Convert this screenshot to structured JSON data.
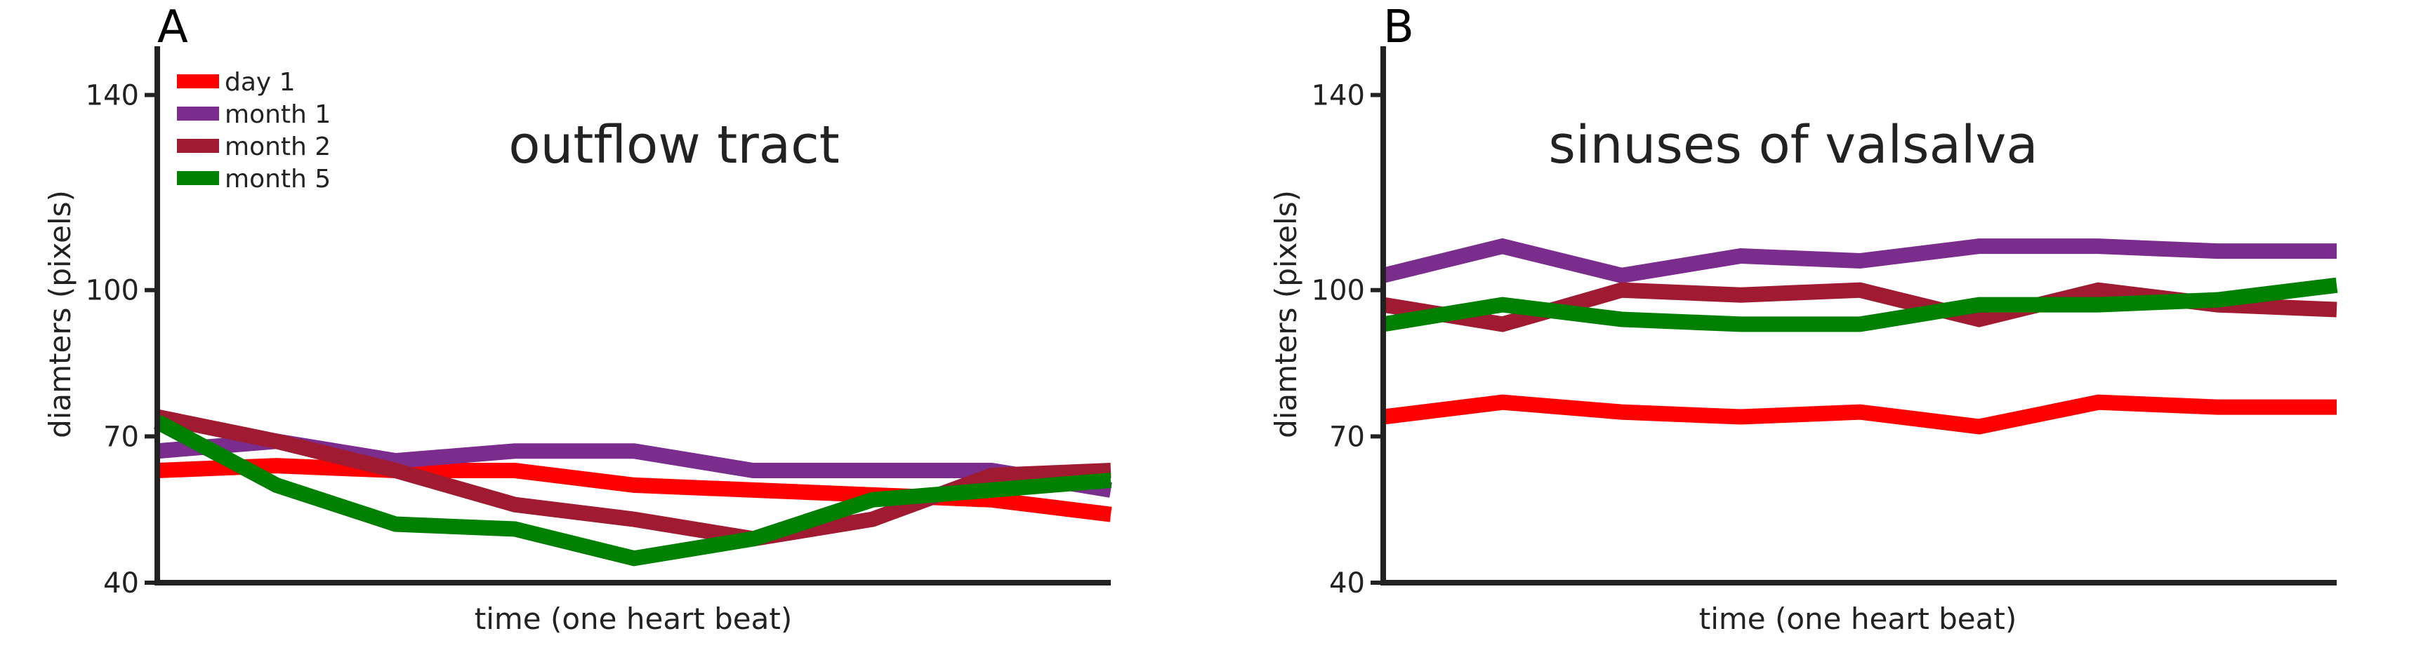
{
  "chart_data": [
    {
      "type": "line",
      "panel_label": "A",
      "title": "outflow tract",
      "xlabel": "time (one heart beat)",
      "ylabel": "diamters (pixels)",
      "ylim": [
        40,
        150
      ],
      "yticks": [
        40,
        70,
        100,
        140
      ],
      "x": [
        1,
        2,
        3,
        4,
        5,
        6,
        7,
        8,
        9
      ],
      "grid": false,
      "legend": "top-left",
      "series": [
        {
          "name": "day 1",
          "color": "#ff0000",
          "values": [
            63,
            64,
            63,
            63,
            60,
            59,
            58,
            57,
            54
          ]
        },
        {
          "name": "month 1",
          "color": "#7b2d8e",
          "values": [
            67,
            69,
            65,
            67,
            67,
            63,
            63,
            63,
            59
          ]
        },
        {
          "name": "month 2",
          "color": "#a01a32",
          "values": [
            74,
            69,
            63,
            56,
            53,
            49,
            53,
            62,
            63
          ]
        },
        {
          "name": "month 5",
          "color": "#008000",
          "values": [
            73,
            60,
            52,
            51,
            45,
            49,
            57,
            59,
            61
          ]
        }
      ]
    },
    {
      "type": "line",
      "panel_label": "B",
      "title": "sinuses of valsalva",
      "xlabel": "time (one heart beat)",
      "ylabel": "diamters (pixels)",
      "ylim": [
        40,
        150
      ],
      "yticks": [
        40,
        70,
        100,
        140
      ],
      "x": [
        1,
        2,
        3,
        4,
        5,
        6,
        7,
        8,
        9
      ],
      "grid": false,
      "legend": "none",
      "series": [
        {
          "name": "day 1",
          "color": "#ff0000",
          "values": [
            74,
            77,
            75,
            74,
            75,
            72,
            77,
            76,
            76
          ]
        },
        {
          "name": "month 1",
          "color": "#7b2d8e",
          "values": [
            103,
            109,
            103,
            107,
            106,
            109,
            109,
            108,
            108
          ]
        },
        {
          "name": "month 2",
          "color": "#a01a32",
          "values": [
            97,
            93,
            100,
            99,
            100,
            94,
            100,
            97,
            96
          ]
        },
        {
          "name": "month 5",
          "color": "#008000",
          "values": [
            93,
            97,
            94,
            93,
            93,
            97,
            97,
            98,
            101
          ]
        }
      ]
    }
  ]
}
